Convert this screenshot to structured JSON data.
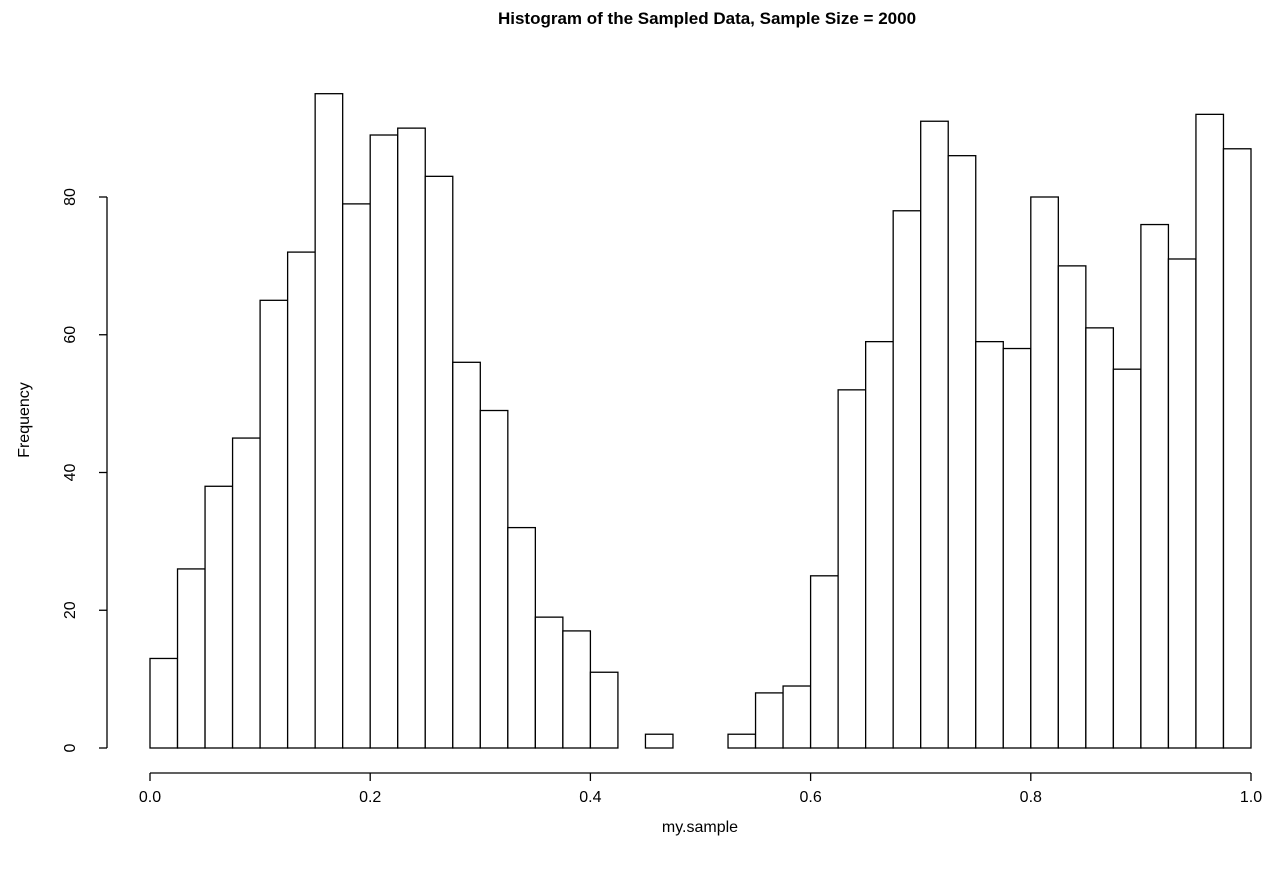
{
  "chart_data": {
    "type": "bar",
    "subtype": "histogram",
    "title": "Histogram of the Sampled Data, Sample Size = 2000",
    "xlabel": "my.sample",
    "ylabel": "Frequency",
    "xlim": [
      0,
      1
    ],
    "ylim": [
      0,
      95
    ],
    "bin_width": 0.025,
    "bin_start": 0.0,
    "values": [
      13,
      26,
      38,
      45,
      65,
      72,
      95,
      79,
      89,
      90,
      83,
      56,
      49,
      32,
      19,
      17,
      11,
      0,
      2,
      0,
      0,
      2,
      8,
      9,
      25,
      52,
      59,
      78,
      91,
      86,
      59,
      58,
      80,
      70,
      61,
      55,
      76,
      71,
      92,
      87
    ],
    "x_ticks": [
      0.0,
      0.2,
      0.4,
      0.6,
      0.8,
      1.0
    ],
    "x_tick_labels": [
      "0.0",
      "0.2",
      "0.4",
      "0.6",
      "0.8",
      "1.0"
    ],
    "y_ticks": [
      0,
      20,
      40,
      60,
      80
    ],
    "y_tick_labels": [
      "0",
      "20",
      "40",
      "60",
      "80"
    ],
    "grid": false,
    "legend": "none",
    "colors": {
      "bar_fill": "#ffffff",
      "bar_stroke": "#000000"
    }
  }
}
